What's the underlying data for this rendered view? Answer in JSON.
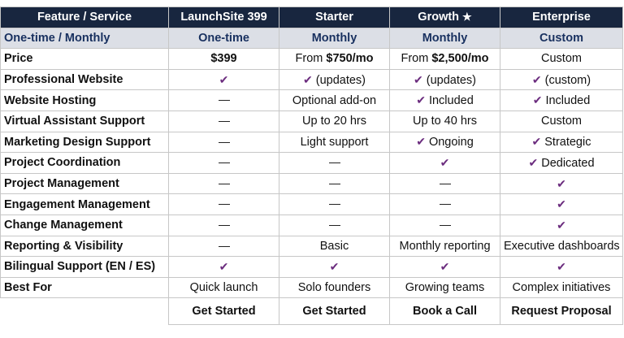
{
  "header": {
    "feature_col": "Feature / Service",
    "plans": [
      {
        "name": "LaunchSite 399",
        "billing": "One-time"
      },
      {
        "name": "Starter",
        "billing": "Monthly"
      },
      {
        "name": "Growth",
        "billing": "Monthly",
        "badge_icon": "star-icon"
      },
      {
        "name": "Enterprise",
        "billing": "Custom"
      }
    ],
    "billing_row_label": "One-time / Monthly"
  },
  "rows": [
    {
      "label": "Price",
      "cells": [
        {
          "bold": "$399"
        },
        {
          "text": "From ",
          "bold": "$750/mo"
        },
        {
          "text": "From ",
          "bold": "$2,500/mo"
        },
        {
          "text": "Custom"
        }
      ]
    },
    {
      "label": "Professional Website",
      "cells": [
        {
          "check": true
        },
        {
          "check": true,
          "text": "(updates)"
        },
        {
          "check": true,
          "text": "(updates)"
        },
        {
          "check": true,
          "text": "(custom)"
        }
      ]
    },
    {
      "label": "Website Hosting",
      "cells": [
        {
          "dash": true
        },
        {
          "text": "Optional add-on"
        },
        {
          "check": true,
          "text": "Included"
        },
        {
          "check": true,
          "text": "Included"
        }
      ]
    },
    {
      "label": "Virtual Assistant Support",
      "cells": [
        {
          "dash": true
        },
        {
          "text": "Up to 20 hrs"
        },
        {
          "text": "Up to 40 hrs"
        },
        {
          "text": "Custom"
        }
      ]
    },
    {
      "label": "Marketing Design Support",
      "cells": [
        {
          "dash": true
        },
        {
          "text": "Light support"
        },
        {
          "check": true,
          "text": "Ongoing"
        },
        {
          "check": true,
          "text": "Strategic"
        }
      ]
    },
    {
      "label": "Project Coordination",
      "cells": [
        {
          "dash": true
        },
        {
          "dash": true
        },
        {
          "check": true
        },
        {
          "check": true,
          "text": "Dedicated"
        }
      ]
    },
    {
      "label": "Project Management",
      "cells": [
        {
          "dash": true
        },
        {
          "dash": true
        },
        {
          "dash": true
        },
        {
          "check": true
        }
      ]
    },
    {
      "label": "Engagement Management",
      "cells": [
        {
          "dash": true
        },
        {
          "dash": true
        },
        {
          "dash": true
        },
        {
          "check": true
        }
      ]
    },
    {
      "label": "Change Management",
      "cells": [
        {
          "dash": true
        },
        {
          "dash": true
        },
        {
          "dash": true
        },
        {
          "check": true
        }
      ]
    },
    {
      "label": "Reporting & Visibility",
      "cells": [
        {
          "dash": true
        },
        {
          "text": "Basic"
        },
        {
          "text": "Monthly reporting"
        },
        {
          "text": "Executive dashboards"
        }
      ]
    },
    {
      "label": "Bilingual Support (EN / ES)",
      "cells": [
        {
          "check": true
        },
        {
          "check": true
        },
        {
          "check": true
        },
        {
          "check": true
        }
      ]
    },
    {
      "label": "Best For",
      "cells": [
        {
          "text": "Quick launch"
        },
        {
          "text": "Solo founders"
        },
        {
          "text": "Growing teams"
        },
        {
          "text": "Complex initiatives"
        }
      ]
    }
  ],
  "cta": [
    "Get Started",
    "Get Started",
    "Book a Call",
    "Request Proposal"
  ],
  "colors": {
    "header_bg": "#18263f",
    "subheader_bg": "#dcdfe6",
    "check": "#6b2c7e"
  },
  "icons": {
    "check": "checkmark-icon",
    "dash": "dash-icon",
    "star": "star-icon"
  }
}
